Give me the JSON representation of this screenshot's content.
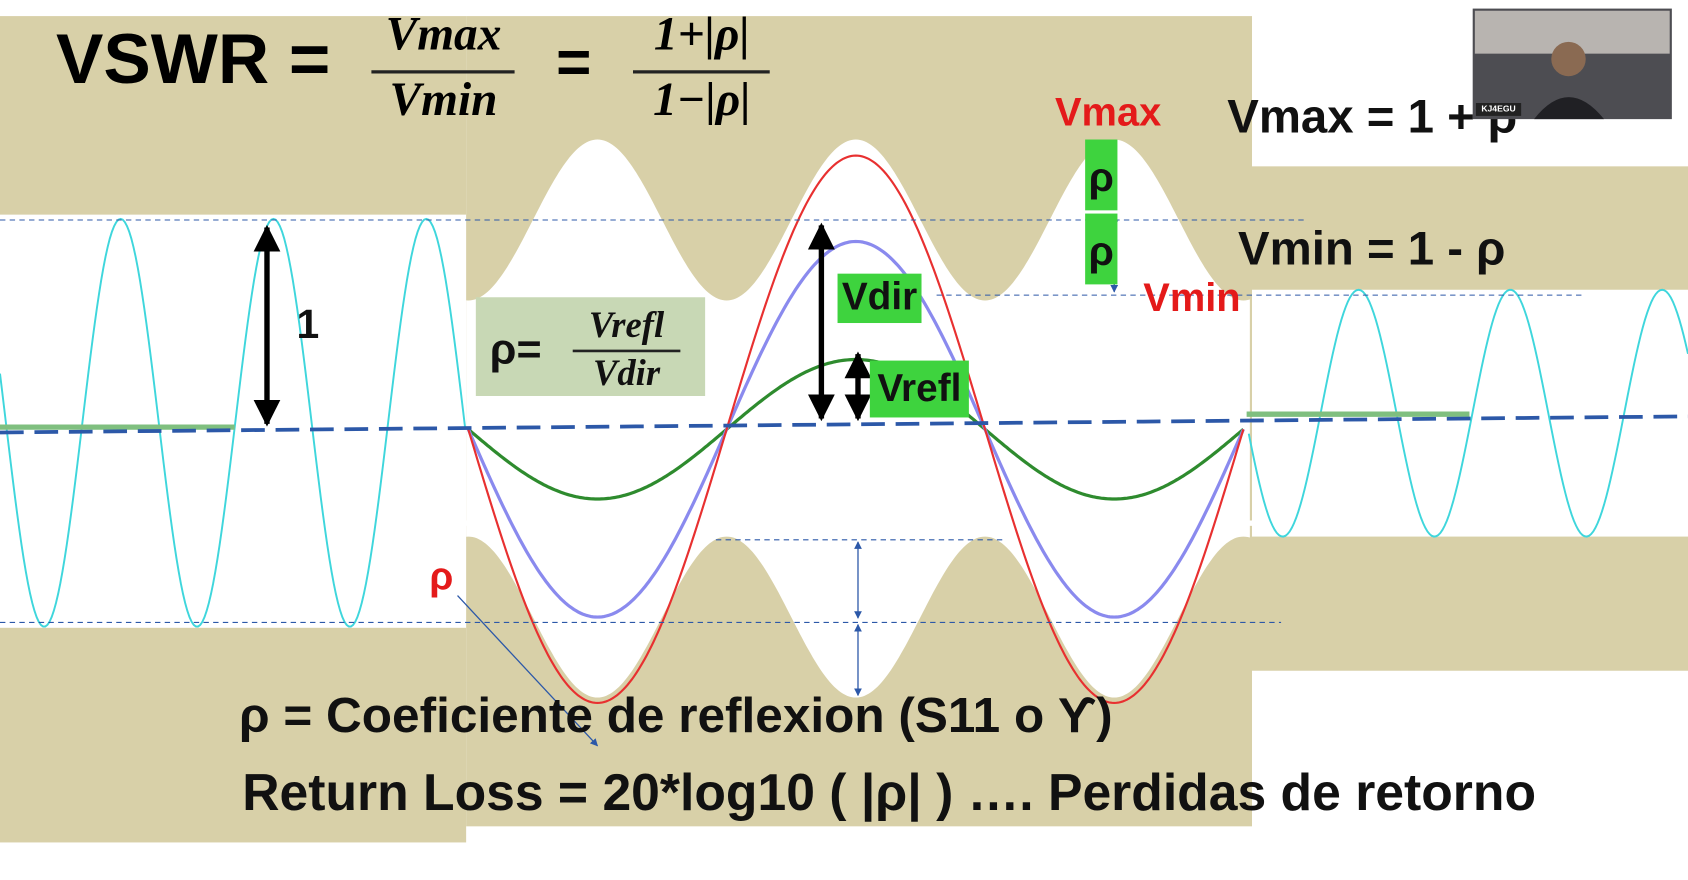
{
  "formula": {
    "lhs": "VSWR =",
    "ratio_numerator": "Vmax",
    "ratio_denominator": "Vmin",
    "equals": "=",
    "rho_numerator": "1+|ρ|",
    "rho_denominator": "1−|ρ|"
  },
  "labels": {
    "vmax_marker": "Vmax",
    "vmin_marker": "Vmin",
    "vmax_equation": "Vmax = 1 + ρ",
    "vmin_equation": "Vmin = 1 - ρ",
    "rho_upper": "ρ",
    "rho_lower": "ρ",
    "vdir": "Vdir",
    "vrefl": "Vrefl",
    "unit_amplitude": "1",
    "rho_pointer": "ρ"
  },
  "rho_formula": {
    "lhs": "ρ=",
    "numerator": "Vrefl",
    "denominator": "Vdir"
  },
  "footer": {
    "line1": "ρ = Coeficiente de reflexion (S11 o ϒ)",
    "line2": "Return Loss = 20*log10 ( |ρ| ) …. Perdidas de retorno"
  },
  "webcam": {
    "name_tag": "KJ4EGU"
  }
}
